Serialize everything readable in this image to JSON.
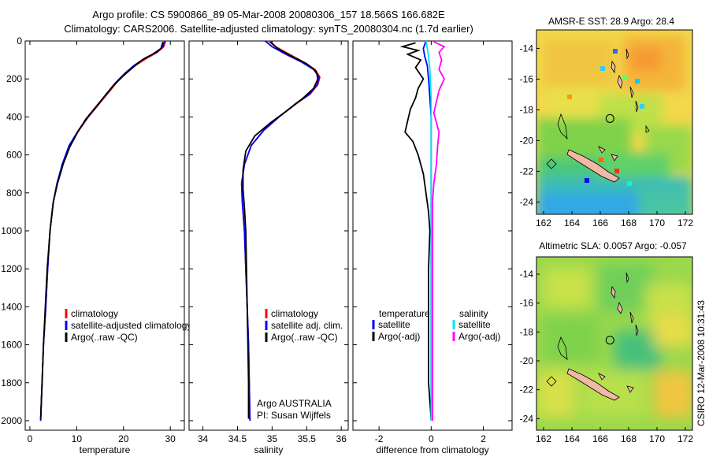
{
  "header": {
    "line1": "Argo profile: CS 5900866_89 05-Mar-2008 20080306_157 18.566S 166.682E",
    "line2": "Climatology: CARS2006. Satellite-adjusted climatology: synTS_20080304.nc (1.7d earlier)"
  },
  "side_label": "CSIRO 12-Mar-2008 10:31:43",
  "colors": {
    "clim": "#ff0000",
    "sat": "#0000ff",
    "argo": "#000000",
    "sat_sal": "#00e5ee",
    "argo_sal": "#ff00ff",
    "land": "#f2b8a6"
  },
  "chart_data": [
    {
      "id": "temperature",
      "type": "line",
      "xlabel": "temperature",
      "xlim": [
        -1,
        33
      ],
      "xticks": [
        0,
        10,
        20,
        30
      ],
      "ylim": [
        0,
        2050
      ],
      "yticks": [
        0,
        200,
        400,
        600,
        800,
        1000,
        1200,
        1400,
        1600,
        1800,
        2000
      ],
      "ylabel": "",
      "legend": {
        "position": "bottom-right",
        "entries": [
          "climatology",
          "satellite-adjusted climatology",
          "Argo(..raw -QC)"
        ]
      },
      "series": [
        {
          "name": "climatology",
          "color": "#ff0000",
          "points": [
            [
              29.0,
              0
            ],
            [
              28.6,
              30
            ],
            [
              27.2,
              60
            ],
            [
              25.0,
              90
            ],
            [
              22.5,
              130
            ],
            [
              20.5,
              170
            ],
            [
              18.5,
              220
            ],
            [
              16.5,
              280
            ],
            [
              14.5,
              340
            ],
            [
              12.5,
              400
            ],
            [
              10.5,
              470
            ],
            [
              8.5,
              550
            ],
            [
              7.0,
              650
            ],
            [
              5.8,
              750
            ],
            [
              5.0,
              850
            ],
            [
              4.3,
              1000
            ],
            [
              3.8,
              1200
            ],
            [
              3.4,
              1400
            ],
            [
              2.9,
              1600
            ],
            [
              2.6,
              1800
            ],
            [
              2.3,
              2000
            ]
          ]
        },
        {
          "name": "satellite-adjusted climatology",
          "color": "#0000ff",
          "points": [
            [
              28.8,
              0
            ],
            [
              28.4,
              30
            ],
            [
              27.0,
              60
            ],
            [
              24.6,
              90
            ],
            [
              22.2,
              130
            ],
            [
              20.3,
              170
            ],
            [
              18.3,
              220
            ],
            [
              16.3,
              280
            ],
            [
              14.4,
              340
            ],
            [
              12.4,
              400
            ],
            [
              10.4,
              470
            ],
            [
              8.4,
              550
            ],
            [
              6.9,
              650
            ],
            [
              5.8,
              750
            ],
            [
              5.0,
              850
            ],
            [
              4.3,
              1000
            ],
            [
              3.8,
              1200
            ],
            [
              3.4,
              1400
            ],
            [
              2.9,
              1600
            ],
            [
              2.6,
              1800
            ],
            [
              2.3,
              2000
            ]
          ]
        },
        {
          "name": "Argo(..raw -QC)",
          "color": "#000000",
          "points": [
            [
              28.4,
              5
            ],
            [
              28.0,
              40
            ],
            [
              26.2,
              70
            ],
            [
              24.0,
              100
            ],
            [
              22.0,
              140
            ],
            [
              20.1,
              180
            ],
            [
              18.0,
              230
            ],
            [
              16.0,
              290
            ],
            [
              14.0,
              350
            ],
            [
              12.0,
              410
            ],
            [
              10.2,
              480
            ],
            [
              8.5,
              560
            ],
            [
              7.1,
              650
            ],
            [
              5.9,
              750
            ],
            [
              5.0,
              850
            ],
            [
              4.3,
              1000
            ],
            [
              3.7,
              1200
            ],
            [
              3.3,
              1400
            ],
            [
              2.9,
              1600
            ],
            [
              2.6,
              1800
            ],
            [
              2.3,
              1990
            ]
          ]
        }
      ]
    },
    {
      "id": "salinity",
      "type": "line",
      "xlabel": "salinity",
      "xlim": [
        33.8,
        36.1
      ],
      "xticks": [
        34,
        34.5,
        35,
        35.5,
        36
      ],
      "ylim": [
        0,
        2050
      ],
      "yticks": [
        0,
        200,
        400,
        600,
        800,
        1000,
        1200,
        1400,
        1600,
        1800,
        2000
      ],
      "legend": {
        "position": "bottom-right",
        "entries": [
          "climatology",
          "satellite adj. clim.",
          "Argo(..raw -QC)"
        ]
      },
      "annotation": [
        "Argo AUSTRALIA",
        "PI: Susan Wijffels"
      ],
      "series": [
        {
          "name": "climatology",
          "color": "#ff0000",
          "points": [
            [
              34.95,
              0
            ],
            [
              35.05,
              30
            ],
            [
              35.25,
              70
            ],
            [
              35.45,
              110
            ],
            [
              35.62,
              150
            ],
            [
              35.69,
              190
            ],
            [
              35.66,
              230
            ],
            [
              35.55,
              280
            ],
            [
              35.35,
              330
            ],
            [
              35.1,
              400
            ],
            [
              34.88,
              470
            ],
            [
              34.7,
              550
            ],
            [
              34.6,
              650
            ],
            [
              34.56,
              750
            ],
            [
              34.57,
              850
            ],
            [
              34.6,
              1000
            ],
            [
              34.62,
              1200
            ],
            [
              34.64,
              1400
            ],
            [
              34.66,
              1600
            ],
            [
              34.67,
              1800
            ],
            [
              34.68,
              2000
            ]
          ]
        },
        {
          "name": "satellite adj. clim.",
          "color": "#0000ff",
          "points": [
            [
              34.9,
              0
            ],
            [
              35.0,
              30
            ],
            [
              35.2,
              70
            ],
            [
              35.42,
              110
            ],
            [
              35.6,
              150
            ],
            [
              35.68,
              190
            ],
            [
              35.65,
              230
            ],
            [
              35.54,
              280
            ],
            [
              35.34,
              330
            ],
            [
              35.1,
              400
            ],
            [
              34.88,
              470
            ],
            [
              34.7,
              550
            ],
            [
              34.6,
              650
            ],
            [
              34.56,
              750
            ],
            [
              34.57,
              850
            ],
            [
              34.6,
              1000
            ],
            [
              34.62,
              1200
            ],
            [
              34.64,
              1400
            ],
            [
              34.66,
              1600
            ],
            [
              34.67,
              1800
            ],
            [
              34.68,
              2000
            ]
          ]
        },
        {
          "name": "Argo(..raw -QC)",
          "color": "#000000",
          "points": [
            [
              34.98,
              5
            ],
            [
              35.08,
              40
            ],
            [
              35.28,
              80
            ],
            [
              35.5,
              120
            ],
            [
              35.64,
              160
            ],
            [
              35.66,
              200
            ],
            [
              35.6,
              250
            ],
            [
              35.45,
              300
            ],
            [
              35.24,
              360
            ],
            [
              34.98,
              430
            ],
            [
              34.75,
              500
            ],
            [
              34.62,
              580
            ],
            [
              34.58,
              680
            ],
            [
              34.58,
              780
            ],
            [
              34.6,
              880
            ],
            [
              34.62,
              1000
            ],
            [
              34.63,
              1200
            ],
            [
              34.64,
              1400
            ],
            [
              34.65,
              1600
            ],
            [
              34.66,
              1800
            ],
            [
              34.66,
              1990
            ]
          ]
        }
      ]
    },
    {
      "id": "difference",
      "type": "line",
      "xlabel": "difference from climatology",
      "xlim": [
        -3,
        3.1
      ],
      "xticks": [
        -2,
        0,
        2
      ],
      "ylim": [
        0,
        2050
      ],
      "yticks": [
        0,
        200,
        400,
        600,
        800,
        1000,
        1200,
        1400,
        1600,
        1800,
        2000
      ],
      "legend": {
        "position": "bottom",
        "temperature_title": "temperature",
        "salinity_title": "salinity",
        "temperature_entries": [
          "satellite",
          "Argo(-adj)"
        ],
        "salinity_entries": [
          "satellite",
          "Argo(-adj)"
        ]
      },
      "series": [
        {
          "name": "temperature satellite",
          "color": "#0000ff",
          "points": [
            [
              -0.2,
              0
            ],
            [
              -0.3,
              40
            ],
            [
              -0.25,
              80
            ],
            [
              -0.15,
              130
            ],
            [
              -0.1,
              200
            ],
            [
              -0.05,
              300
            ],
            [
              0,
              400
            ],
            [
              0,
              600
            ],
            [
              0,
              1000
            ],
            [
              0,
              1500
            ],
            [
              0,
              2000
            ]
          ]
        },
        {
          "name": "temperature Argo(-adj)",
          "color": "#000000",
          "points": [
            [
              -0.6,
              10
            ],
            [
              -1.1,
              30
            ],
            [
              -0.5,
              50
            ],
            [
              -0.9,
              70
            ],
            [
              -0.4,
              100
            ],
            [
              -0.6,
              140
            ],
            [
              -0.3,
              200
            ],
            [
              -0.5,
              250
            ],
            [
              -0.6,
              300
            ],
            [
              -0.8,
              360
            ],
            [
              -0.9,
              420
            ],
            [
              -1.0,
              480
            ],
            [
              -0.7,
              530
            ],
            [
              -0.5,
              600
            ],
            [
              -0.3,
              700
            ],
            [
              -0.2,
              800
            ],
            [
              -0.1,
              900
            ],
            [
              -0.05,
              1000
            ],
            [
              -0.1,
              1200
            ],
            [
              -0.1,
              1400
            ],
            [
              -0.1,
              1600
            ],
            [
              -0.1,
              1800
            ],
            [
              0,
              1990
            ]
          ]
        },
        {
          "name": "salinity satellite",
          "color": "#00e5ee",
          "points": [
            [
              -0.2,
              0
            ],
            [
              -0.15,
              40
            ],
            [
              -0.1,
              80
            ],
            [
              -0.05,
              150
            ],
            [
              0,
              300
            ],
            [
              0,
              800
            ],
            [
              0,
              1500
            ],
            [
              0,
              2000
            ]
          ]
        },
        {
          "name": "salinity Argo(-adj)",
          "color": "#ff00ff",
          "points": [
            [
              0.1,
              5
            ],
            [
              0.5,
              30
            ],
            [
              0.3,
              60
            ],
            [
              0.4,
              100
            ],
            [
              0.3,
              150
            ],
            [
              0.5,
              200
            ],
            [
              0.3,
              260
            ],
            [
              0.2,
              320
            ],
            [
              0.1,
              380
            ],
            [
              0.2,
              430
            ],
            [
              0.3,
              480
            ],
            [
              0.25,
              550
            ],
            [
              0.2,
              650
            ],
            [
              0.1,
              750
            ],
            [
              0.05,
              850
            ],
            [
              0.05,
              1000
            ],
            [
              0.05,
              1500
            ],
            [
              0.05,
              2000
            ]
          ]
        }
      ]
    },
    {
      "id": "sst_map",
      "type": "heatmap",
      "title": "AMSR-E SST: 28.9 Argo: 28.4",
      "xlim": [
        161.5,
        172.5
      ],
      "ylim": [
        -24.8,
        -12.8
      ],
      "xticks": [
        162,
        164,
        166,
        168,
        170,
        172
      ],
      "yticks": [
        -14,
        -16,
        -18,
        -20,
        -22,
        -24
      ],
      "marker": {
        "lon": 166.682,
        "lat": -18.566
      }
    },
    {
      "id": "sla_map",
      "type": "heatmap",
      "title": "Altimetric SLA: 0.0057 Argo: -0.057",
      "xlim": [
        161.5,
        172.5
      ],
      "ylim": [
        -24.8,
        -12.8
      ],
      "xticks": [
        162,
        164,
        166,
        168,
        170,
        172
      ],
      "yticks": [
        -14,
        -16,
        -18,
        -20,
        -22,
        -24
      ],
      "marker": {
        "lon": 166.682,
        "lat": -18.566
      }
    }
  ]
}
